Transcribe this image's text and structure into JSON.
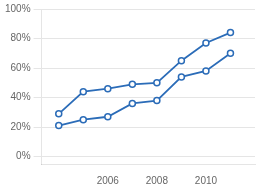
{
  "chart_data": {
    "type": "line",
    "x": [
      2004,
      2005,
      2006,
      2007,
      2008,
      2009,
      2010,
      2011
    ],
    "series": [
      {
        "color": "#2b6cb8",
        "values": [
          0.29,
          0.44,
          0.46,
          0.49,
          0.5,
          0.65,
          0.77,
          0.84
        ]
      },
      {
        "color": "#2b6cb8",
        "values": [
          0.21,
          0.25,
          0.27,
          0.36,
          0.38,
          0.54,
          0.58,
          0.7
        ]
      }
    ],
    "marker": "circle",
    "xlim": [
      2003.3,
      2012.0
    ],
    "xticks": [
      2006,
      2008,
      2010
    ],
    "ylim": [
      -0.05,
      1.0
    ],
    "yticks": [
      {
        "value": 0.0,
        "label": "0%"
      },
      {
        "value": 0.2,
        "label": "20%"
      },
      {
        "value": 0.4,
        "label": "40%"
      },
      {
        "value": 0.6,
        "label": "60%"
      },
      {
        "value": 0.8,
        "label": "80%"
      },
      {
        "value": 1.0,
        "label": "100%"
      }
    ],
    "grid": "y"
  }
}
